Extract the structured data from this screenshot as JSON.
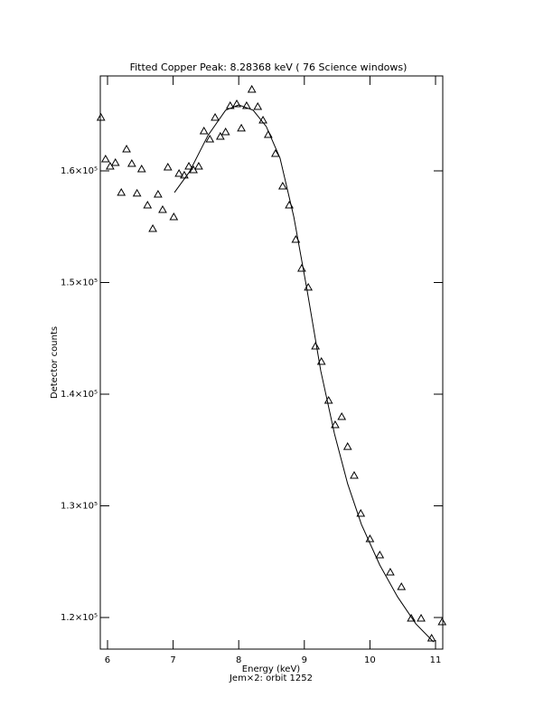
{
  "chart_data": {
    "type": "scatter",
    "title": "Fitted Copper Peak:       8.28368 keV (      76 Science windows)",
    "x_label": "Energy (keV)",
    "subtitle": "Jem×2: orbit 1252",
    "y_label": "Detector counts",
    "xlim": [
      5.89,
      11.11
    ],
    "ylim": [
      117170,
      168500
    ],
    "xticks": [
      6,
      7,
      8,
      9,
      10,
      11
    ],
    "yticks": [
      {
        "value": 120000,
        "label": "1.2×10⁵"
      },
      {
        "value": 130000,
        "label": "1.3×10⁵"
      },
      {
        "value": 140000,
        "label": "1.4×10⁵"
      },
      {
        "value": 150000,
        "label": "1.5×10⁵"
      },
      {
        "value": 160000,
        "label": "1.6×10⁵"
      }
    ],
    "color": "#000000",
    "x": [
      5.9,
      5.97,
      6.04,
      6.12,
      6.21,
      6.29,
      6.37,
      6.45,
      6.52,
      6.61,
      6.69,
      6.77,
      6.84,
      6.92,
      7.01,
      7.09,
      7.17,
      7.24,
      7.31,
      7.39,
      7.47,
      7.56,
      7.64,
      7.72,
      7.8,
      7.87,
      7.97,
      8.04,
      8.12,
      8.2,
      8.29,
      8.37,
      8.45,
      8.56,
      8.67,
      8.77,
      8.87,
      8.96,
      9.06,
      9.17,
      9.26,
      9.37,
      9.47,
      9.57,
      9.66,
      9.76,
      9.86,
      10.0,
      10.15,
      10.31,
      10.48,
      10.63,
      10.78,
      10.94,
      11.1
    ],
    "values": [
      164780,
      161050,
      160400,
      160730,
      158060,
      161940,
      160650,
      157980,
      160160,
      156920,
      154820,
      157890,
      156520,
      160320,
      155870,
      159760,
      159600,
      160400,
      160080,
      160400,
      163560,
      162830,
      164780,
      163080,
      163480,
      165830,
      165990,
      163810,
      165830,
      167290,
      165750,
      164530,
      163240,
      161540,
      158620,
      156920,
      153850,
      151260,
      149560,
      144290,
      142920,
      139430,
      137250,
      137980,
      135300,
      132710,
      129310,
      127040,
      125590,
      124050,
      122750,
      119920,
      119920,
      118140,
      119600
    ],
    "fit": {
      "x": [
        7.02,
        7.25,
        7.53,
        7.8,
        8.0,
        8.22,
        8.42,
        8.63,
        8.84,
        9.04,
        9.25,
        9.46,
        9.66,
        9.87,
        10.15,
        10.42,
        10.7,
        10.97
      ],
      "values": [
        158060,
        159920,
        163160,
        165430,
        165910,
        165430,
        163970,
        161130,
        155870,
        149390,
        142100,
        136440,
        131980,
        128340,
        124700,
        121860,
        119430,
        117810
      ]
    }
  }
}
